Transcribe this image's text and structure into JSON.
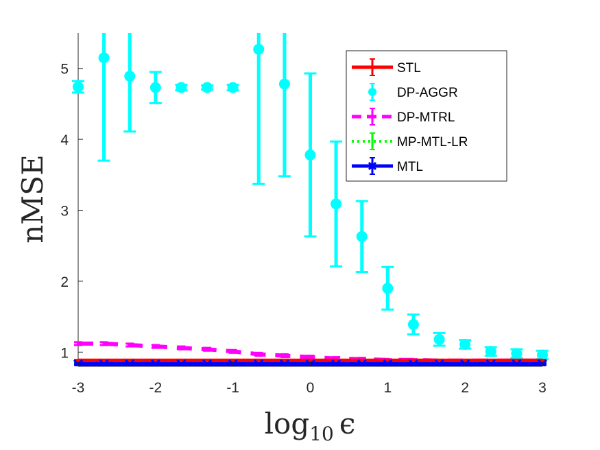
{
  "chart_data": {
    "type": "line",
    "title": "",
    "xlabel": "log",
    "xlabel_sub": "10",
    "xlabel_symbol": "ϵ",
    "ylabel": "nMSE",
    "xlim": [
      -3,
      3
    ],
    "ylim": [
      0.8,
      5.5
    ],
    "xticks": [
      -3,
      -2,
      -1,
      0,
      1,
      2,
      3
    ],
    "xtick_labels": [
      "-3",
      "-2",
      "-1",
      "0",
      "1",
      "2",
      "3"
    ],
    "yticks": [
      1,
      2,
      3,
      4,
      5
    ],
    "ytick_labels": [
      "1",
      "2",
      "3",
      "4",
      "5"
    ],
    "legend_position": "top-right",
    "x": [
      -3,
      -2.667,
      -2.333,
      -2,
      -1.667,
      -1.333,
      -1,
      -0.667,
      -0.333,
      0,
      0.333,
      0.667,
      1,
      1.333,
      1.667,
      2,
      2.333,
      2.667,
      3
    ],
    "series": [
      {
        "name": "STL",
        "color": "#ff0000",
        "style": "solid",
        "marker": "none",
        "values": [
          0.88,
          0.88,
          0.88,
          0.88,
          0.88,
          0.88,
          0.88,
          0.88,
          0.88,
          0.88,
          0.88,
          0.88,
          0.88,
          0.88,
          0.88,
          0.88,
          0.88,
          0.88,
          0.88
        ],
        "errors": [
          0.01,
          0.01,
          0.01,
          0.01,
          0.01,
          0.01,
          0.01,
          0.01,
          0.01,
          0.01,
          0.01,
          0.01,
          0.01,
          0.01,
          0.01,
          0.01,
          0.01,
          0.01,
          0.01
        ]
      },
      {
        "name": "DP-AGGR",
        "color": "#00ffff",
        "style": "none",
        "marker": "circle",
        "values": [
          4.74,
          5.15,
          4.89,
          4.73,
          4.73,
          4.73,
          4.73,
          5.27,
          4.78,
          3.78,
          3.09,
          2.63,
          1.9,
          1.39,
          1.18,
          1.11,
          1.01,
          0.98,
          0.96
        ],
        "errors": [
          0.08,
          1.45,
          0.78,
          0.22,
          0.04,
          0.03,
          0.04,
          1.9,
          1.3,
          1.15,
          0.88,
          0.5,
          0.3,
          0.14,
          0.09,
          0.06,
          0.06,
          0.06,
          0.06
        ]
      },
      {
        "name": "DP-MTRL",
        "color": "#ff00ff",
        "style": "dashed",
        "marker": "none",
        "values": [
          1.12,
          1.12,
          1.1,
          1.08,
          1.06,
          1.04,
          1.01,
          0.97,
          0.95,
          0.93,
          0.91,
          0.9,
          0.89,
          0.89,
          0.88,
          0.88,
          0.88,
          0.88,
          0.88
        ],
        "errors": [
          0.02,
          0.02,
          0.02,
          0.02,
          0.02,
          0.02,
          0.02,
          0.02,
          0.02,
          0.02,
          0.02,
          0.02,
          0.01,
          0.01,
          0.01,
          0.01,
          0.01,
          0.01,
          0.01
        ]
      },
      {
        "name": "MP-MTL-LR",
        "color": "#00ff00",
        "style": "dotted",
        "marker": "none",
        "values": [
          0.84,
          0.84,
          0.84,
          0.84,
          0.84,
          0.84,
          0.84,
          0.84,
          0.84,
          0.84,
          0.84,
          0.84,
          0.84,
          0.84,
          0.84,
          0.84,
          0.84,
          0.84,
          0.84
        ],
        "errors": [
          0.01,
          0.01,
          0.01,
          0.01,
          0.01,
          0.01,
          0.01,
          0.01,
          0.01,
          0.01,
          0.01,
          0.01,
          0.01,
          0.01,
          0.01,
          0.01,
          0.01,
          0.01,
          0.01
        ]
      },
      {
        "name": "MTL",
        "color": "#0000ff",
        "style": "solid",
        "marker": "x",
        "values": [
          0.83,
          0.83,
          0.83,
          0.83,
          0.83,
          0.83,
          0.83,
          0.83,
          0.83,
          0.83,
          0.83,
          0.83,
          0.83,
          0.83,
          0.83,
          0.83,
          0.83,
          0.83,
          0.83
        ],
        "errors": [
          0.01,
          0.01,
          0.01,
          0.01,
          0.01,
          0.01,
          0.01,
          0.01,
          0.01,
          0.01,
          0.01,
          0.01,
          0.01,
          0.01,
          0.01,
          0.01,
          0.01,
          0.01,
          0.01
        ]
      }
    ]
  }
}
